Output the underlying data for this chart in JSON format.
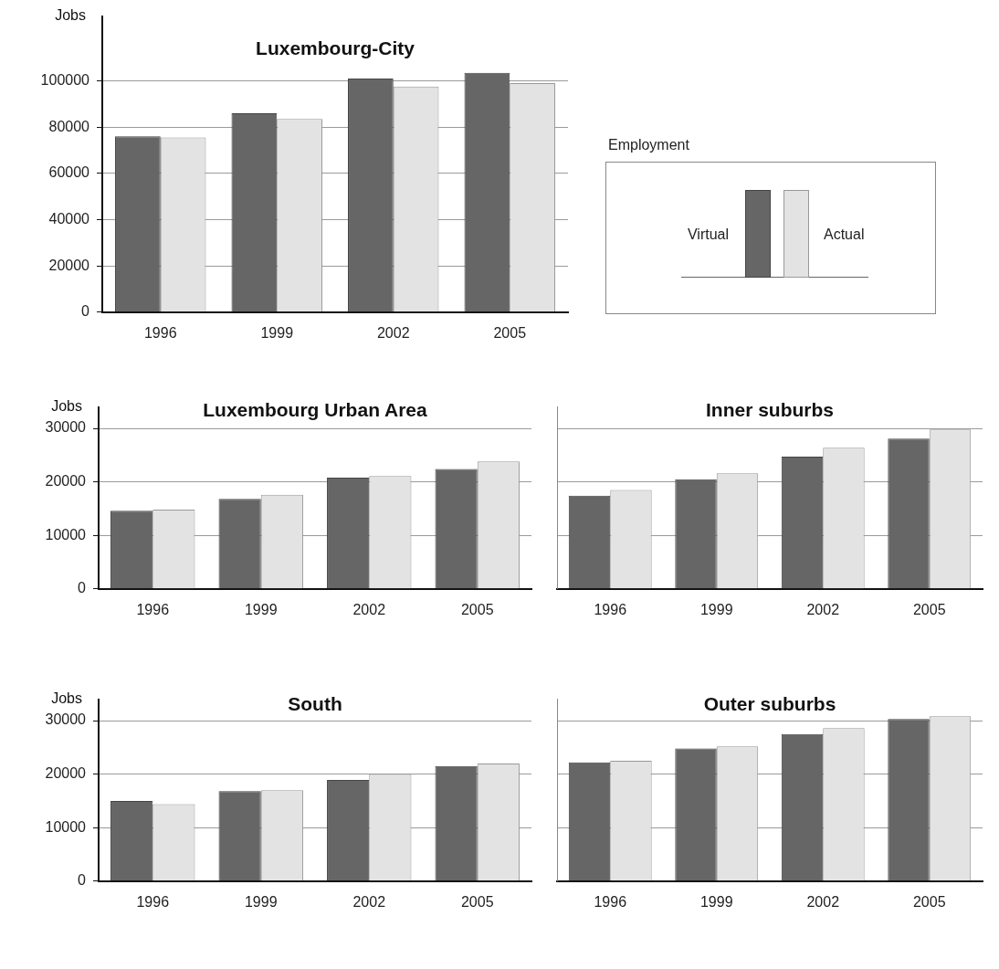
{
  "chart_data": [
    {
      "type": "bar",
      "title": "Luxembourg-City",
      "ylabel": "Jobs",
      "categories": [
        "1996",
        "1999",
        "2002",
        "2005"
      ],
      "legend": "right",
      "legend_title": "Employment",
      "ylim": [
        0,
        128000
      ],
      "yticks": [
        0,
        20000,
        40000,
        60000,
        80000,
        100000
      ],
      "grid": "y",
      "series": [
        {
          "name": "Virtual",
          "color": "#666666",
          "values": [
            76000,
            86000,
            101000,
            103500
          ]
        },
        {
          "name": "Actual",
          "color": "#e3e3e3",
          "values": [
            75500,
            83500,
            97500,
            99000
          ]
        }
      ]
    },
    {
      "type": "bar",
      "title": "Luxembourg Urban Area",
      "ylabel": "Jobs",
      "categories": [
        "1996",
        "1999",
        "2002",
        "2005"
      ],
      "ylim": [
        0,
        34000
      ],
      "yticks": [
        0,
        10000,
        20000,
        30000
      ],
      "grid": "y",
      "series": [
        {
          "color": "#666666",
          "values": [
            14600,
            16800,
            20800,
            22400
          ]
        },
        {
          "color": "#e3e3e3",
          "values": [
            14800,
            17600,
            21100,
            23800
          ]
        }
      ]
    },
    {
      "type": "bar",
      "title": "Inner suburbs",
      "categories": [
        "1996",
        "1999",
        "2002",
        "2005"
      ],
      "ylim": [
        0,
        34000
      ],
      "yticks": [
        0,
        10000,
        20000,
        30000
      ],
      "grid": "y",
      "tick_labels": "x",
      "series": [
        {
          "color": "#666666",
          "values": [
            17400,
            20500,
            24700,
            28100
          ]
        },
        {
          "color": "#e3e3e3",
          "values": [
            18500,
            21600,
            26400,
            29800
          ]
        }
      ]
    },
    {
      "type": "bar",
      "title": "South",
      "ylabel": "Jobs",
      "categories": [
        "1996",
        "1999",
        "2002",
        "2005"
      ],
      "ylim": [
        0,
        34000
      ],
      "yticks": [
        0,
        10000,
        20000,
        30000
      ],
      "grid": "y",
      "series": [
        {
          "color": "#666666",
          "values": [
            15000,
            16800,
            18900,
            21500
          ]
        },
        {
          "color": "#e3e3e3",
          "values": [
            14400,
            17000,
            20000,
            22000
          ]
        }
      ]
    },
    {
      "type": "bar",
      "title": "Outer suburbs",
      "categories": [
        "1996",
        "1999",
        "2002",
        "2005"
      ],
      "ylim": [
        0,
        34000
      ],
      "yticks": [
        0,
        10000,
        20000,
        30000
      ],
      "grid": "y",
      "tick_labels": "x",
      "series": [
        {
          "color": "#666666",
          "values": [
            22200,
            24800,
            27500,
            30300
          ]
        },
        {
          "color": "#e3e3e3",
          "values": [
            22500,
            25200,
            28600,
            30800
          ]
        }
      ]
    }
  ]
}
